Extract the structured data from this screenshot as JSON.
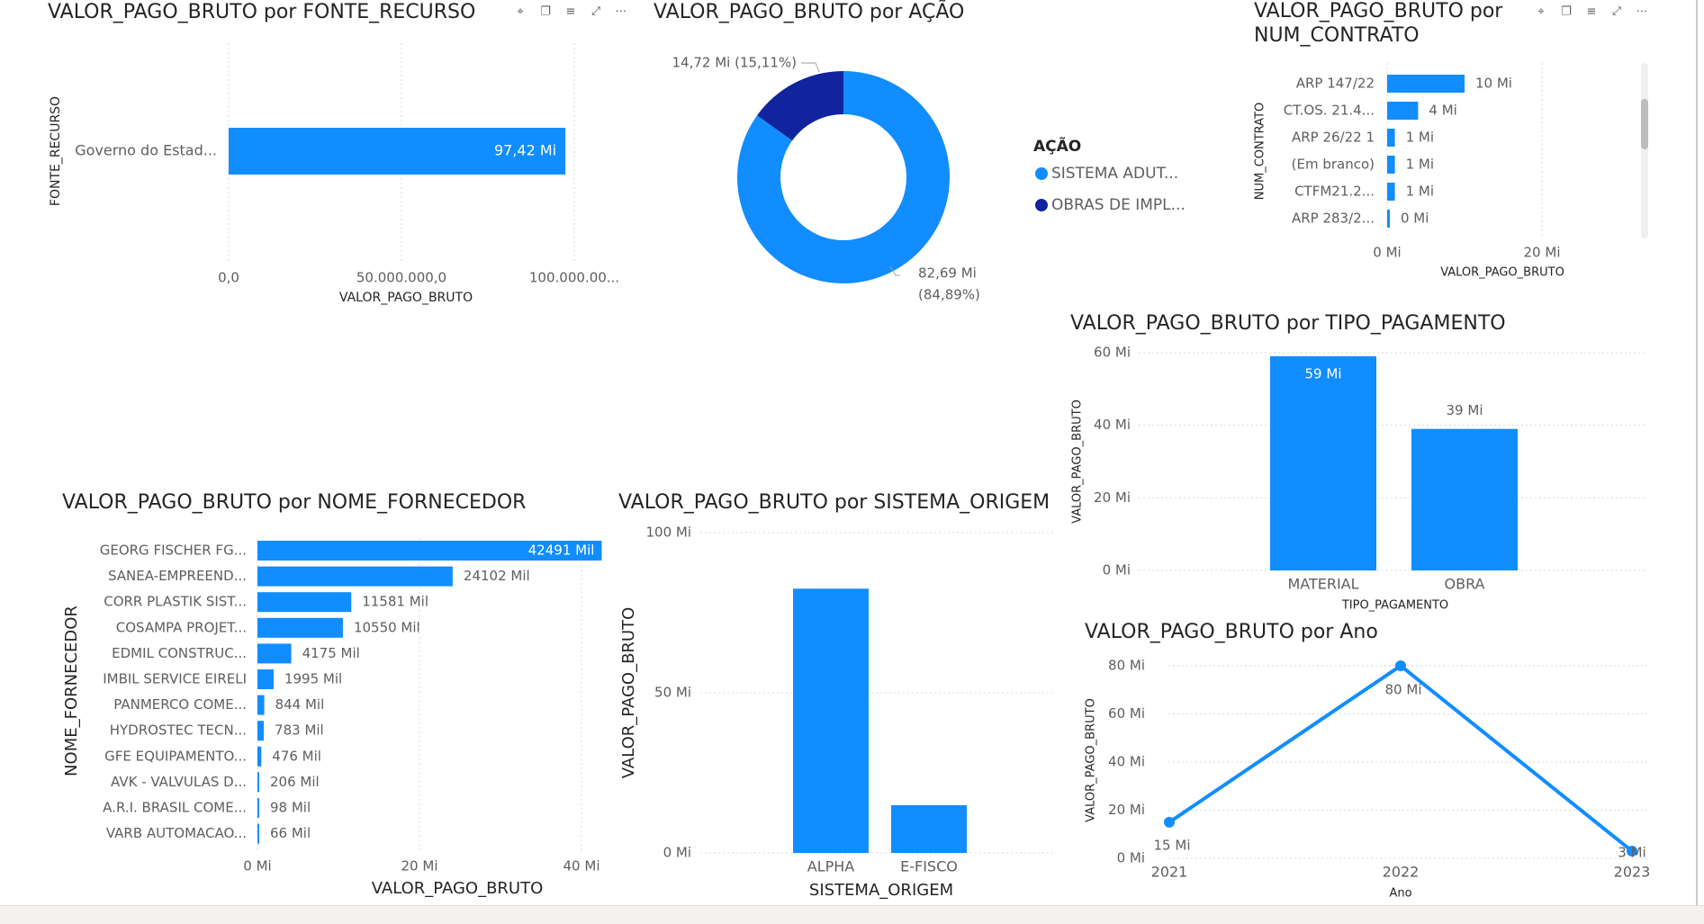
{
  "colors": {
    "primary": "#118DFF",
    "dark": "#12239E",
    "grid": "#d9d9d9",
    "text": "#605E5C",
    "title": "#252423"
  },
  "visual_header_icons": [
    "pin-icon",
    "copy-icon",
    "filter-icon",
    "focus-mode-icon",
    "more-options-icon"
  ],
  "chart_data": [
    {
      "id": "fonte_recurso",
      "type": "bar",
      "orientation": "horizontal",
      "title": "VALOR_PAGO_BRUTO por FONTE_RECURSO",
      "xlabel": "VALOR_PAGO_BRUTO",
      "ylabel": "FONTE_RECURSO",
      "categories": [
        "Governo do Estad..."
      ],
      "values": [
        97420000
      ],
      "data_labels": [
        "97,42 Mi"
      ],
      "xlim": [
        0,
        100000000
      ],
      "x_ticks": [
        0,
        50000000,
        100000000
      ],
      "x_tick_labels": [
        "0,0",
        "50.000.000,0",
        "100.000.00..."
      ]
    },
    {
      "id": "acao",
      "type": "pie",
      "title": "VALOR_PAGO_BRUTO por AÇÃO",
      "legend_title": "AÇÃO",
      "labels": [
        "SISTEMA ADUT...",
        "OBRAS DE IMPL..."
      ],
      "values": [
        82.69,
        14.72
      ],
      "data_labels": [
        "82,69 Mi (84,89%)",
        "14,72 Mi (15,11%)"
      ],
      "colors": [
        "#118DFF",
        "#12239E"
      ]
    },
    {
      "id": "num_contrato",
      "type": "bar",
      "orientation": "horizontal",
      "title": "VALOR_PAGO_BRUTO por NUM_CONTRATO",
      "xlabel": "VALOR_PAGO_BRUTO",
      "ylabel": "NUM_CONTRATO",
      "categories": [
        "ARP 147/22",
        "CT.OS. 21.4...",
        "ARP 26/22 1",
        "(Em branco)",
        "CTFM21.2...",
        "ARP 283/2..."
      ],
      "values": [
        10,
        4,
        1,
        1,
        1,
        0.2
      ],
      "data_labels": [
        "10 Mi",
        "4 Mi",
        "1 Mi",
        "1 Mi",
        "1 Mi",
        "0 Mi"
      ],
      "xlim": [
        0,
        20
      ],
      "x_ticks": [
        0,
        20
      ],
      "x_tick_labels": [
        "0 Mi",
        "20 Mi"
      ]
    },
    {
      "id": "tipo_pagamento",
      "type": "bar",
      "title": "VALOR_PAGO_BRUTO por TIPO_PAGAMENTO",
      "xlabel": "TIPO_PAGAMENTO",
      "ylabel": "VALOR_PAGO_BRUTO",
      "categories": [
        "MATERIAL",
        "OBRA"
      ],
      "values": [
        59,
        39
      ],
      "data_labels": [
        "59 Mi",
        "39 Mi"
      ],
      "ylim": [
        0,
        60
      ],
      "y_ticks": [
        0,
        20,
        40,
        60
      ],
      "y_tick_labels": [
        "0 Mi",
        "20 Mi",
        "40 Mi",
        "60 Mi"
      ]
    },
    {
      "id": "nome_fornecedor",
      "type": "bar",
      "orientation": "horizontal",
      "title": "VALOR_PAGO_BRUTO por NOME_FORNECEDOR",
      "xlabel": "VALOR_PAGO_BRUTO",
      "ylabel": "NOME_FORNECEDOR",
      "categories": [
        "GEORG FISCHER FG...",
        "SANEA-EMPREEND...",
        "CORR PLASTIK SIST...",
        "COSAMPA PROJET...",
        "EDMIL CONSTRUC...",
        "IMBIL SERVICE EIRELI",
        "PANMERCO COME...",
        "HYDROSTEC TECN...",
        "GFE EQUIPAMENTO...",
        "AVK - VALVULAS D...",
        "A.R.I. BRASIL COME...",
        "VARB AUTOMACAO..."
      ],
      "values": [
        42491,
        24102,
        11581,
        10550,
        4175,
        1995,
        844,
        783,
        476,
        206,
        98,
        66
      ],
      "data_labels": [
        "42491 Mil",
        "24102 Mil",
        "11581 Mil",
        "10550 Mil",
        "4175 Mil",
        "1995 Mil",
        "844 Mil",
        "783 Mil",
        "476 Mil",
        "206 Mil",
        "98 Mil",
        "66 Mil"
      ],
      "xlim": [
        0,
        42000
      ],
      "x_ticks": [
        0,
        20000,
        40000
      ],
      "x_tick_labels": [
        "0 Mi",
        "20 Mi",
        "40 Mi"
      ]
    },
    {
      "id": "sistema_origem",
      "type": "bar",
      "title": "VALOR_PAGO_BRUTO por SISTEMA_ORIGEM",
      "xlabel": "SISTEMA_ORIGEM",
      "ylabel": "VALOR_PAGO_BRUTO",
      "categories": [
        "ALPHA",
        "E-FISCO"
      ],
      "values": [
        82.5,
        14.9
      ],
      "ylim": [
        0,
        100
      ],
      "y_ticks": [
        0,
        50,
        100
      ],
      "y_tick_labels": [
        "0 Mi",
        "50 Mi",
        "100 Mi"
      ]
    },
    {
      "id": "ano",
      "type": "line",
      "title": "VALOR_PAGO_BRUTO por Ano",
      "xlabel": "Ano",
      "ylabel": "VALOR_PAGO_BRUTO",
      "x": [
        "2021",
        "2022",
        "2023"
      ],
      "values": [
        15,
        80,
        3
      ],
      "data_labels": [
        "15 Mi",
        "80 Mi",
        "3 Mi"
      ],
      "ylim": [
        0,
        80
      ],
      "y_ticks": [
        0,
        20,
        40,
        60,
        80
      ],
      "y_tick_labels": [
        "0 Mi",
        "20 Mi",
        "40 Mi",
        "60 Mi",
        "80 Mi"
      ]
    }
  ]
}
